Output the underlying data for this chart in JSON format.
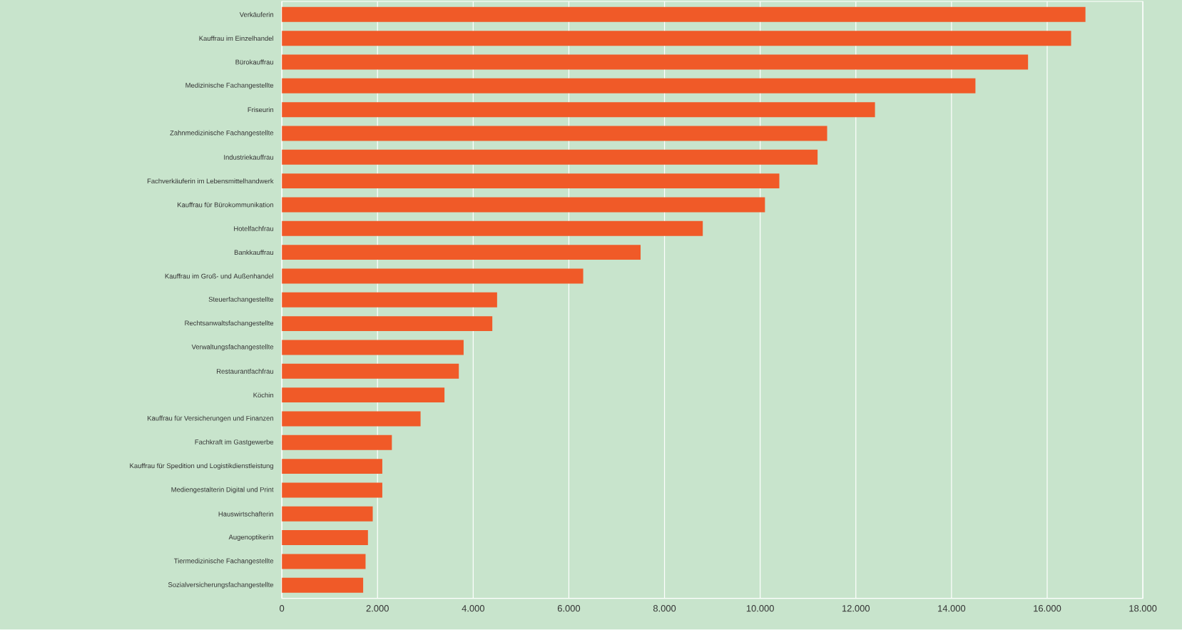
{
  "chart_data": {
    "type": "bar",
    "orientation": "horizontal",
    "categories": [
      "Verkäuferin",
      "Kauffrau im Einzelhandel",
      "Bürokauffrau",
      "Medizinische Fachangestellte",
      "Friseurin",
      "Zahnmedizinische Fachangestellte",
      "Industriekauffrau",
      "Fachverkäuferin im Lebensmittelhandwerk",
      "Kauffrau für Bürokommunikation",
      "Hotelfachfrau",
      "Bankkauffrau",
      "Kauffrau im Groß- und Außenhandel",
      "Steuerfachangestellte",
      "Rechtsanwaltsfachangestellte",
      "Verwaltungsfachangestellte",
      "Restaurantfachfrau",
      "Köchin",
      "Kauffrau für Versicherungen und Finanzen",
      "Fachkraft im Gastgewerbe",
      "Kauffrau für Spedition und Logistikdienstleistung",
      "Mediengestalterin Digital und Print",
      "Hauswirtschafterin",
      "Augenoptikerin",
      "Tiermedizinische Fachangestellte",
      "Sozialversicherungsfachangestellte"
    ],
    "values": [
      16800,
      16500,
      15600,
      14500,
      12400,
      11400,
      11200,
      10400,
      10100,
      8800,
      7500,
      6300,
      4500,
      4400,
      3800,
      3700,
      3400,
      2900,
      2300,
      2100,
      2100,
      1900,
      1800,
      1750,
      1700
    ],
    "color": "#f05a28",
    "xlim": [
      0,
      18000
    ],
    "xticks": [
      0,
      {
        "value": 2000,
        "label": "2.000"
      },
      {
        "value": 4000,
        "label": "4.000"
      },
      {
        "value": 6000,
        "label": "6.000"
      },
      {
        "value": 8000,
        "label": "8.000"
      },
      {
        "value": 10000,
        "label": "10.000"
      },
      {
        "value": 12000,
        "label": "12.000"
      },
      {
        "value": 14000,
        "label": "14.000"
      },
      {
        "value": 16000,
        "label": "16.000"
      },
      {
        "value": 18000,
        "label": "18.000"
      }
    ],
    "grid": "x"
  }
}
